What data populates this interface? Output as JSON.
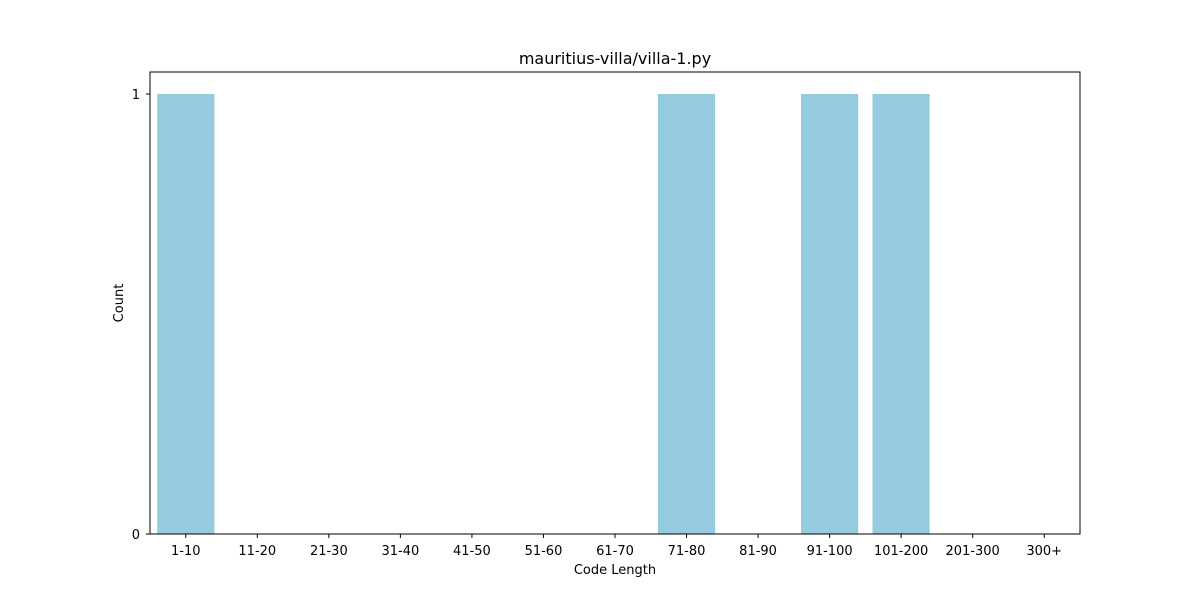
{
  "chart_data": {
    "type": "bar",
    "title": "mauritius-villa/villa-1.py",
    "xlabel": "Code Length",
    "ylabel": "Count",
    "categories": [
      "1-10",
      "11-20",
      "21-30",
      "31-40",
      "41-50",
      "51-60",
      "61-70",
      "71-80",
      "81-90",
      "91-100",
      "101-200",
      "201-300",
      "300+"
    ],
    "values": [
      1,
      0,
      0,
      0,
      0,
      0,
      0,
      1,
      0,
      1,
      1,
      0,
      0
    ],
    "yticks": [
      "0",
      "1"
    ],
    "ylim": [
      0,
      1
    ],
    "grid": false,
    "legend": "none",
    "bar_color": "#96cade"
  }
}
